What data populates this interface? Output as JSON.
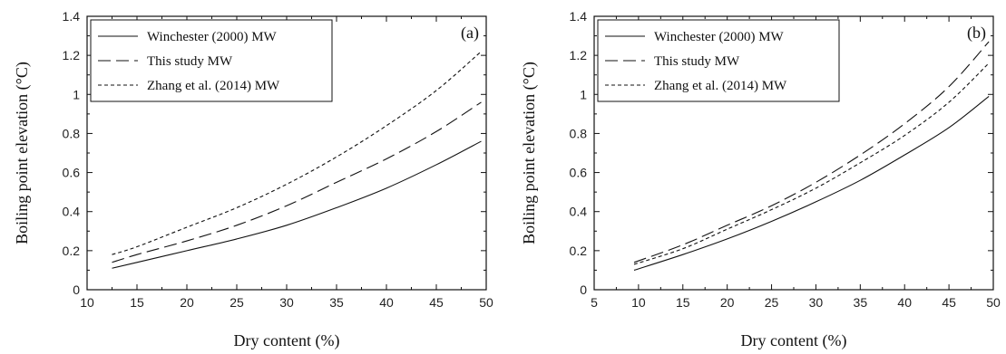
{
  "figure": {
    "background": "#ffffff",
    "line_color": "#111111"
  },
  "chart_data": [
    {
      "panel": "(a)",
      "type": "line",
      "xlabel": "Dry content (%)",
      "ylabel": "Boiling point elevation (°C)",
      "xlim": [
        10,
        50
      ],
      "ylim": [
        0,
        1.4
      ],
      "xticks": [
        10,
        15,
        20,
        25,
        30,
        35,
        40,
        45,
        50
      ],
      "yticks": [
        0,
        0.2,
        0.4,
        0.6,
        0.8,
        1,
        1.2,
        1.4
      ],
      "grid": false,
      "legend_position": "top-left",
      "x": [
        12.5,
        15,
        20,
        25,
        30,
        35,
        40,
        45,
        49.5
      ],
      "series": [
        {
          "name": "Winchester (2000) MW",
          "dash": "solid",
          "values": [
            0.11,
            0.14,
            0.2,
            0.26,
            0.33,
            0.42,
            0.52,
            0.64,
            0.76
          ]
        },
        {
          "name": "This study MW",
          "dash": "long-dash",
          "values": [
            0.14,
            0.18,
            0.25,
            0.33,
            0.43,
            0.55,
            0.67,
            0.81,
            0.96
          ]
        },
        {
          "name": "Zhang et al. (2014) MW",
          "dash": "short-dash",
          "values": [
            0.18,
            0.22,
            0.32,
            0.42,
            0.54,
            0.68,
            0.84,
            1.02,
            1.22
          ]
        }
      ]
    },
    {
      "panel": "(b)",
      "type": "line",
      "xlabel": "Dry content (%)",
      "ylabel": "Boiling point elevation (°C)",
      "xlim": [
        5,
        50
      ],
      "ylim": [
        0,
        1.4
      ],
      "xticks": [
        5,
        10,
        15,
        20,
        25,
        30,
        35,
        40,
        45,
        50
      ],
      "yticks": [
        0,
        0.2,
        0.4,
        0.6,
        0.8,
        1,
        1.2,
        1.4
      ],
      "grid": false,
      "legend_position": "top-left",
      "x": [
        9.5,
        15,
        20,
        25,
        30,
        35,
        40,
        45,
        49.5
      ],
      "series": [
        {
          "name": "Winchester (2000) MW",
          "dash": "solid",
          "values": [
            0.1,
            0.18,
            0.26,
            0.35,
            0.45,
            0.56,
            0.69,
            0.83,
            0.99
          ]
        },
        {
          "name": "This study MW",
          "dash": "long-dash",
          "values": [
            0.14,
            0.23,
            0.33,
            0.43,
            0.55,
            0.69,
            0.85,
            1.04,
            1.27
          ]
        },
        {
          "name": "Zhang et al. (2014) MW",
          "dash": "short-dash",
          "values": [
            0.13,
            0.21,
            0.31,
            0.41,
            0.52,
            0.65,
            0.79,
            0.96,
            1.16
          ]
        }
      ]
    }
  ]
}
